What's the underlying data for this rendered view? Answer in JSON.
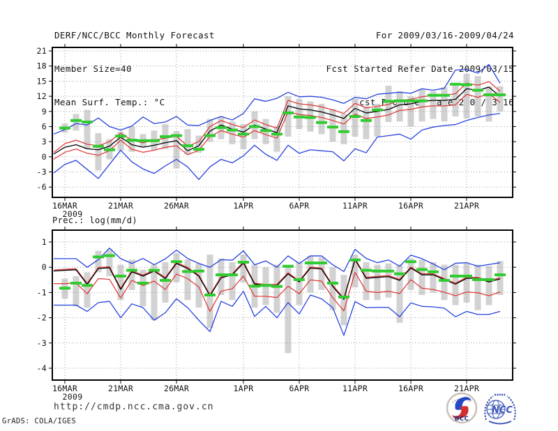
{
  "header": {
    "title": "DERF/NCC/BCC Monthly Forecast",
    "member_size": "Member Size=40",
    "var_label": "Mean Surf. Temp.: °C",
    "for_range": "For 2009/03/16-2009/04/24",
    "refer_date": "Fcst Started Refer Date 2009/03/15",
    "produced_date": "Fcst Produced Date 2009/03/16"
  },
  "footer": {
    "url": "http://cmdp.ncc.cma.gov.cn",
    "grads_credit": "GrADS: COLA/IGES",
    "logos": [
      {
        "label": "BCC"
      },
      {
        "label": "NCC"
      }
    ]
  },
  "colors": {
    "blue": "#2440dd",
    "red": "#e03030",
    "green": "#2fcc2f",
    "black": "#000000",
    "bar": "#d2d2d2",
    "grid": "#9a9a9a",
    "frame": "#000000"
  },
  "x_axis": {
    "year_label": "2009",
    "n_points": 41,
    "tick_labels": [
      "16MAR",
      "21MAR",
      "26MAR",
      "1APR",
      "6APR",
      "11APR",
      "16APR",
      "21APR"
    ],
    "tick_index": [
      1,
      6,
      11,
      17,
      22,
      27,
      32,
      37
    ]
  },
  "chart_data": [
    {
      "type": "line",
      "title": "Mean Surf. Temp.: °C",
      "ylim": [
        -8.04,
        21.69
      ],
      "yticks": [
        21,
        18,
        15,
        12,
        9,
        6,
        3,
        0,
        -3,
        -6
      ],
      "x_tick_labels": [
        "16MAR",
        "21MAR",
        "26MAR",
        "1APR",
        "6APR",
        "11APR",
        "16APR",
        "21APR"
      ],
      "x_tick_index": [
        1,
        6,
        11,
        17,
        22,
        27,
        32,
        37
      ],
      "series": [
        {
          "name": "envelope-max-blue",
          "color": "#2440dd",
          "width": 1.3,
          "values": [
            4.5,
            5.4,
            6.6,
            6.3,
            7.7,
            6.0,
            5.3,
            6.1,
            7.9,
            6.6,
            6.9,
            8.0,
            6.3,
            6.2,
            7.2,
            8.0,
            7.3,
            8.6,
            11.5,
            11.0,
            11.6,
            12.8,
            11.9,
            12.0,
            11.8,
            11.3,
            10.6,
            11.8,
            11.5,
            12.4,
            12.6,
            12.8,
            12.6,
            13.5,
            13.2,
            13.6,
            17.2,
            17.3,
            16.6,
            18.3,
            14.6
          ]
        },
        {
          "name": "envelope-min-blue",
          "color": "#2440dd",
          "width": 1.3,
          "values": [
            -3.2,
            -1.5,
            -0.7,
            -2.5,
            -4.3,
            -1.5,
            1.3,
            -1.0,
            -2.4,
            -3.3,
            -1.8,
            -0.5,
            -2.0,
            -4.5,
            -2.0,
            -0.5,
            -1.2,
            0.2,
            2.3,
            0.5,
            -0.7,
            2.3,
            0.7,
            1.4,
            1.2,
            1.0,
            -0.8,
            1.6,
            0.8,
            3.9,
            4.2,
            4.5,
            3.5,
            5.3,
            5.9,
            6.2,
            6.4,
            7.2,
            7.8,
            8.3,
            8.6
          ]
        },
        {
          "name": "band-upper-red",
          "color": "#e03030",
          "width": 1.2,
          "values": [
            0.9,
            2.6,
            3.3,
            2.5,
            2.2,
            3.0,
            4.7,
            3.3,
            2.8,
            3.3,
            3.7,
            4.1,
            2.1,
            3.0,
            6.0,
            7.2,
            6.4,
            5.8,
            7.3,
            6.4,
            5.7,
            11.2,
            10.5,
            10.3,
            9.9,
            9.3,
            8.6,
            10.6,
            9.7,
            10.0,
            10.4,
            11.2,
            11.4,
            11.9,
            12.2,
            12.2,
            12.5,
            14.6,
            14.2,
            14.9,
            13.0
          ]
        },
        {
          "name": "band-lower-red",
          "color": "#e03030",
          "width": 1.2,
          "values": [
            -0.45,
            0.9,
            1.55,
            0.7,
            0.3,
            1.2,
            3.3,
            1.5,
            0.9,
            1.3,
            1.9,
            2.2,
            0.4,
            1.3,
            4.0,
            5.2,
            4.5,
            3.9,
            5.2,
            4.4,
            3.7,
            8.9,
            8.4,
            8.2,
            7.8,
            7.2,
            6.5,
            8.5,
            7.6,
            7.9,
            8.3,
            9.2,
            9.4,
            9.9,
            10.1,
            10.1,
            10.3,
            12.4,
            11.8,
            12.5,
            10.8
          ]
        },
        {
          "name": "ensemble-mean-black",
          "color": "#000000",
          "width": 1.3,
          "values": [
            0.55,
            1.9,
            2.4,
            1.6,
            1.4,
            2.1,
            3.9,
            2.4,
            1.9,
            2.3,
            2.8,
            3.2,
            1.2,
            2.2,
            5.1,
            6.3,
            5.5,
            4.9,
            6.3,
            5.5,
            4.8,
            10.1,
            9.5,
            9.3,
            8.9,
            8.3,
            7.6,
            9.6,
            8.7,
            9.0,
            9.4,
            10.3,
            10.5,
            11.0,
            11.2,
            11.2,
            11.4,
            13.5,
            13.2,
            13.8,
            12.0
          ]
        },
        {
          "name": "observation-green",
          "color": "#2fcc2f",
          "style": "dash",
          "values": [
            null,
            5.7,
            7.2,
            6.9,
            2.1,
            1.4,
            4.1,
            3.3,
            3.2,
            3.2,
            4.0,
            4.2,
            2.2,
            1.5,
            4.2,
            5.8,
            5.3,
            4.5,
            6.0,
            5.2,
            4.5,
            8.7,
            7.9,
            7.8,
            6.8,
            5.9,
            5.0,
            8.0,
            7.2,
            9.3,
            11.0,
            11.1,
            11.1,
            11.1,
            12.2,
            12.2,
            14.4,
            14.3,
            13.2,
            12.3,
            12.3
          ]
        }
      ],
      "bars": [
        null,
        [
          4.8,
          6.6
        ],
        [
          5.2,
          8.5
        ],
        [
          1.5,
          9.3
        ],
        [
          -2.7,
          4.7
        ],
        [
          -0.5,
          3.5
        ],
        [
          1.2,
          5.0
        ],
        [
          1.0,
          6.0
        ],
        [
          2.0,
          4.5
        ],
        [
          1.3,
          5.2
        ],
        [
          1.5,
          6.5
        ],
        [
          -2.3,
          5.1
        ],
        [
          0.5,
          5.5
        ],
        [
          0.8,
          4.2
        ],
        [
          3.0,
          7.5
        ],
        [
          3.5,
          8.0
        ],
        [
          2.5,
          7.0
        ],
        [
          1.5,
          6.5
        ],
        [
          3.5,
          9.0
        ],
        [
          2.5,
          7.5
        ],
        [
          1.0,
          6.0
        ],
        [
          4.0,
          12.0
        ],
        [
          5.5,
          11.5
        ],
        [
          5.0,
          11.0
        ],
        [
          4.5,
          10.5
        ],
        [
          3.0,
          9.5
        ],
        [
          2.5,
          8.5
        ],
        [
          4.0,
          11.5
        ],
        [
          3.5,
          10.0
        ],
        [
          4.0,
          10.5
        ],
        [
          6.9,
          14.1
        ],
        [
          7.0,
          13.0
        ],
        [
          6.0,
          12.0
        ],
        [
          7.0,
          13.5
        ],
        [
          7.5,
          13.0
        ],
        [
          7.0,
          13.8
        ],
        [
          8.0,
          14.5
        ],
        [
          7.6,
          16.5
        ],
        [
          8.0,
          16.0
        ],
        [
          7.0,
          14.0
        ],
        [
          9.0,
          14.0
        ]
      ]
    },
    {
      "type": "line",
      "title": "Prec.: log(mm/d)",
      "ylim": [
        -4.47,
        1.47
      ],
      "yticks": [
        1,
        0,
        -1,
        -2,
        -3,
        -4
      ],
      "x_tick_labels": [
        "16MAR",
        "21MAR",
        "26MAR",
        "1APR",
        "6APR",
        "11APR",
        "16APR",
        "21APR"
      ],
      "x_tick_index": [
        1,
        6,
        11,
        17,
        22,
        27,
        32,
        37
      ],
      "series": [
        {
          "name": "envelope-max-blue",
          "color": "#2440dd",
          "width": 1.3,
          "values": [
            0.34,
            0.34,
            0.34,
            0.0,
            0.3,
            0.76,
            0.34,
            0.15,
            0.35,
            0.1,
            0.33,
            0.68,
            0.35,
            0.15,
            0.0,
            0.3,
            0.28,
            0.65,
            0.1,
            0.25,
            0.0,
            0.45,
            0.15,
            0.45,
            0.45,
            0.1,
            -0.17,
            0.71,
            0.35,
            0.18,
            0.29,
            0.04,
            0.48,
            0.34,
            0.13,
            -0.1,
            0.16,
            0.18,
            0.04,
            0.11,
            0.18
          ]
        },
        {
          "name": "envelope-min-blue",
          "color": "#2440dd",
          "width": 1.3,
          "values": [
            -1.5,
            -1.5,
            -1.5,
            -1.75,
            -1.4,
            -1.35,
            -2.0,
            -1.45,
            -1.6,
            -2.1,
            -1.8,
            -1.25,
            -1.6,
            -2.1,
            -2.55,
            -1.35,
            -1.55,
            -0.95,
            -1.95,
            -1.55,
            -2.0,
            -1.4,
            -1.85,
            -1.1,
            -1.25,
            -1.6,
            -2.7,
            -1.36,
            -1.6,
            -1.59,
            -1.59,
            -1.96,
            -1.41,
            -1.55,
            -1.57,
            -1.62,
            -1.96,
            -1.75,
            -1.87,
            -1.87,
            -1.75
          ]
        },
        {
          "name": "band-upper-red",
          "color": "#e03030",
          "width": 1.2,
          "values": [
            -0.11,
            -0.08,
            -0.06,
            -0.64,
            -0.01,
            0.02,
            -0.84,
            -0.14,
            -0.31,
            -0.11,
            -0.41,
            0.19,
            -0.01,
            -0.31,
            -1.09,
            -0.38,
            -0.26,
            0.21,
            -0.63,
            -0.68,
            -0.68,
            -0.22,
            -0.54,
            0.01,
            -0.03,
            -0.72,
            -1.23,
            0.34,
            -0.4,
            -0.36,
            -0.33,
            -0.48,
            0.01,
            -0.26,
            -0.26,
            -0.45,
            -0.63,
            -0.4,
            -0.4,
            -0.54,
            -0.42
          ]
        },
        {
          "name": "band-lower-red",
          "color": "#e03030",
          "width": 1.2,
          "values": [
            -0.65,
            -0.65,
            -0.62,
            -1.05,
            -0.45,
            -0.48,
            -1.22,
            -0.52,
            -0.72,
            -0.55,
            -0.88,
            -0.27,
            -0.45,
            -0.78,
            -1.75,
            -0.95,
            -0.85,
            -0.35,
            -1.15,
            -1.15,
            -1.2,
            -0.75,
            -1.05,
            -0.5,
            -0.55,
            -1.2,
            -1.73,
            -0.2,
            -0.95,
            -1.0,
            -0.95,
            -1.04,
            -0.49,
            -0.83,
            -0.88,
            -0.99,
            -1.13,
            -0.98,
            -1.01,
            -1.13,
            -0.98
          ]
        },
        {
          "name": "ensemble-mean-black",
          "color": "#000000",
          "width": 1.3,
          "values": [
            -0.15,
            -0.12,
            -0.1,
            -0.68,
            -0.05,
            -0.02,
            -0.88,
            -0.18,
            -0.35,
            -0.15,
            -0.45,
            0.15,
            -0.05,
            -0.35,
            -1.13,
            -0.42,
            -0.3,
            0.17,
            -0.67,
            -0.72,
            -0.72,
            -0.26,
            -0.58,
            -0.03,
            -0.07,
            -0.76,
            -1.27,
            0.3,
            -0.44,
            -0.4,
            -0.37,
            -0.52,
            -0.03,
            -0.3,
            -0.3,
            -0.49,
            -0.67,
            -0.44,
            -0.44,
            -0.58,
            -0.46
          ]
        },
        {
          "name": "observation-green",
          "color": "#2fcc2f",
          "style": "dash",
          "values": [
            null,
            -0.83,
            -0.63,
            -0.72,
            0.41,
            0.46,
            -0.35,
            -0.12,
            -0.63,
            -0.12,
            -0.52,
            0.22,
            -0.17,
            -0.15,
            -1.1,
            -0.3,
            -0.3,
            0.2,
            -0.75,
            -0.72,
            -0.76,
            0.04,
            -0.49,
            0.17,
            0.17,
            -0.63,
            -1.18,
            0.29,
            -0.12,
            -0.15,
            -0.15,
            -0.26,
            0.22,
            -0.09,
            -0.18,
            -0.52,
            -0.35,
            -0.35,
            -0.49,
            -0.49,
            -0.3
          ]
        }
      ],
      "bars": [
        null,
        [
          -1.25,
          -0.45
        ],
        [
          -1.55,
          -0.35
        ],
        [
          -1.6,
          -0.2
        ],
        [
          -0.2,
          0.65
        ],
        [
          -0.35,
          0.7
        ],
        [
          -1.3,
          0.1
        ],
        [
          -0.9,
          0.3
        ],
        [
          -1.55,
          -0.1
        ],
        [
          -2.1,
          0.1
        ],
        [
          -1.4,
          0.2
        ],
        [
          -0.6,
          0.55
        ],
        [
          -1.3,
          0.3
        ],
        [
          -1.6,
          0.15
        ],
        [
          -2.4,
          0.5
        ],
        [
          -1.1,
          0.35
        ],
        [
          -1.3,
          0.2
        ],
        [
          -0.6,
          0.5
        ],
        [
          -1.6,
          0.1
        ],
        [
          -1.5,
          0.0
        ],
        [
          -1.8,
          0.1
        ],
        [
          -3.4,
          0.05
        ],
        [
          -1.5,
          0.2
        ],
        [
          -1.0,
          0.45
        ],
        [
          -0.9,
          0.4
        ],
        [
          -1.7,
          0.0
        ],
        [
          -2.3,
          -0.3
        ],
        [
          -0.8,
          0.5
        ],
        [
          -1.3,
          0.2
        ],
        [
          -1.3,
          0.1
        ],
        [
          -1.2,
          0.15
        ],
        [
          -2.2,
          0.1
        ],
        [
          -0.9,
          0.35
        ],
        [
          -1.1,
          0.3
        ],
        [
          -1.0,
          0.2
        ],
        [
          -1.3,
          0.1
        ],
        [
          -1.5,
          0.1
        ],
        [
          -1.4,
          0.15
        ],
        [
          -1.7,
          0.1
        ],
        [
          -1.5,
          0.05
        ],
        [
          -1.1,
          0.25
        ]
      ]
    }
  ]
}
